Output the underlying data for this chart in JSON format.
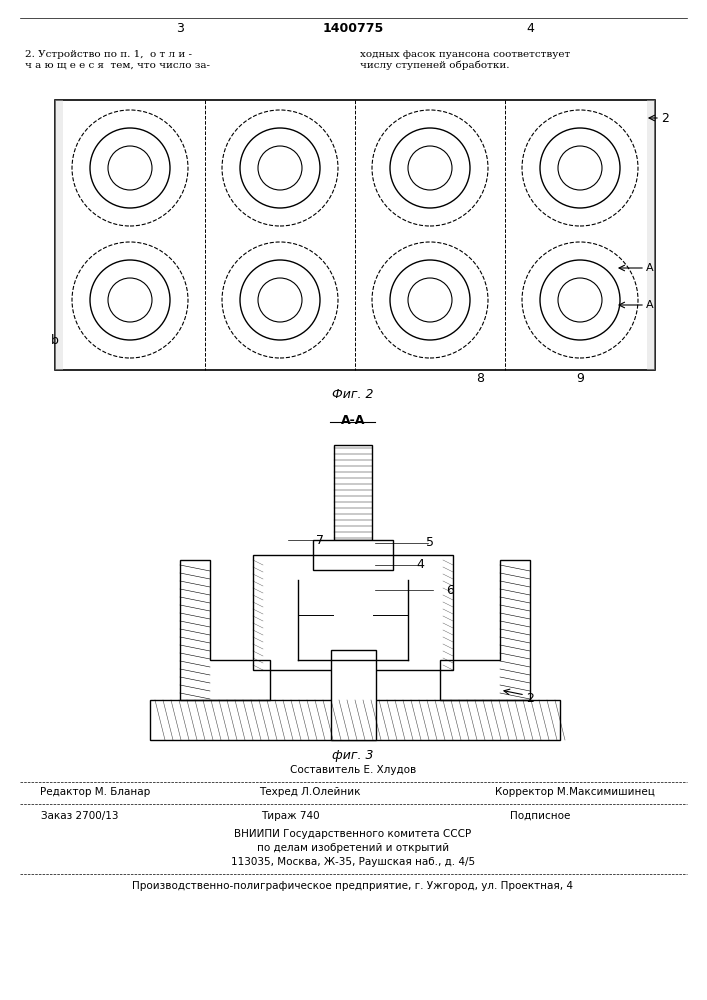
{
  "bg_color": "#ffffff",
  "page_width": 7.07,
  "page_height": 10.0,
  "header": {
    "left_num": "3",
    "center_num": "1400775",
    "right_num": "4"
  },
  "top_text_left": "2. Устройство по п. 1,  о т л и -\nч а ю щ е е с я  тем, что число за-",
  "top_text_right": "ходных фасок пуансона соответствует\nчислу ступеней обработки.",
  "fig2_label": "Фиг. 2",
  "fig3_label": "фиг. 3",
  "section_label": "А-А",
  "labels": {
    "b": "b",
    "8": "8",
    "9": "9",
    "2_top": "2",
    "A_right": "A",
    "A_left": "A",
    "2_bottom": "2",
    "5": "5",
    "4": "4",
    "6": "6",
    "7": "7"
  },
  "footer_composer": "Составитель Е. Хлудов",
  "footer_editor": "Редактор М. Бланар",
  "footer_techred": "Техред Л.Олейник",
  "footer_corrector": "Корректор М.Максимишинец",
  "footer_order": "Заказ 2700/13",
  "footer_tirage": "Тираж 740",
  "footer_subscription": "Подписное",
  "footer_vniip1": "ВНИИПИ Государственного комитета СССР",
  "footer_vniip2": "по делам изобретений и открытий",
  "footer_vniip3": "113035, Москва, Ж-35, Раушская наб., д. 4/5",
  "footer_factory": "Производственно-полиграфическое предприятие, г. Ужгород, ул. Проектная, 4"
}
